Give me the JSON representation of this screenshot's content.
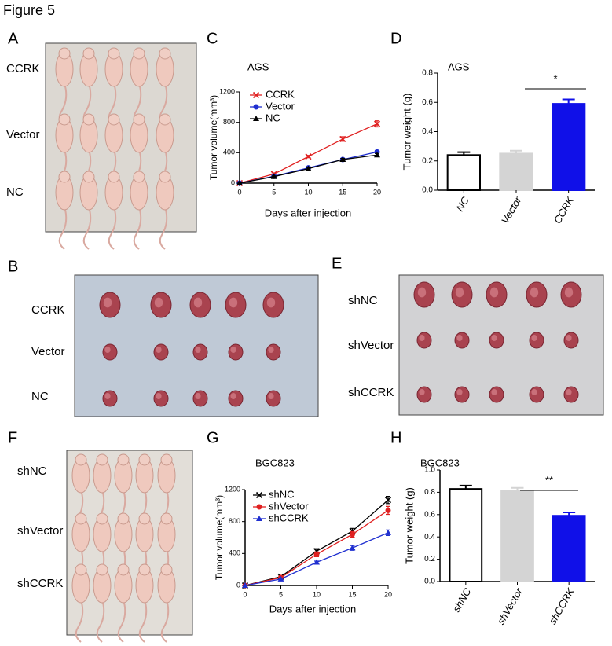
{
  "figure_title": "Figure 5",
  "panel_letters": [
    "A",
    "B",
    "C",
    "D",
    "E",
    "F",
    "G",
    "H"
  ],
  "photo_panels": [
    {
      "labels": [
        "CCRK",
        "Vector",
        "NC"
      ]
    },
    {
      "labels": [
        "CCRK",
        "Vector",
        "NC"
      ]
    },
    {
      "labels": [
        "shNC",
        "shVector",
        "shCCRK"
      ]
    },
    {
      "labels": [
        "shNC",
        "shVector",
        "shCCRK"
      ]
    }
  ],
  "chart_data": [
    {
      "type": "line",
      "title": "AGS",
      "x_label": "Days after injection",
      "y_label": "Tumor volume(mm³)",
      "x": [
        0,
        5,
        10,
        15,
        20
      ],
      "xlim": [
        0,
        20
      ],
      "xticks": [
        0,
        5,
        10,
        15,
        20
      ],
      "ylim": [
        0,
        1200
      ],
      "yticks": [
        0,
        400,
        800,
        1200
      ],
      "series": [
        {
          "name": "CCRK",
          "color": "#e02020",
          "marker": "x",
          "values": [
            0,
            120,
            350,
            580,
            780
          ],
          "errors": [
            0,
            15,
            15,
            30,
            40
          ]
        },
        {
          "name": "Vector",
          "color": "#1f2fd0",
          "marker": "circle",
          "values": [
            0,
            90,
            200,
            310,
            410
          ],
          "errors": [
            0,
            10,
            15,
            15,
            20
          ]
        },
        {
          "name": "NC",
          "color": "#000000",
          "marker": "triangle",
          "values": [
            0,
            85,
            190,
            310,
            370
          ],
          "errors": [
            0,
            10,
            15,
            15,
            20
          ]
        }
      ]
    },
    {
      "type": "bar",
      "title": "AGS",
      "y_label": "Tumor weight (g)",
      "categories": [
        "NC",
        "Vector",
        "CCRK"
      ],
      "values": [
        0.24,
        0.25,
        0.59
      ],
      "errors": [
        0.02,
        0.02,
        0.03
      ],
      "colors": [
        "#ffffff",
        "#d4d4d4",
        "#1010e8"
      ],
      "ylim": [
        0,
        0.8
      ],
      "yticks": [
        {
          "value": 0,
          "label": "0.0"
        },
        0.2,
        0.4,
        0.6,
        0.8
      ],
      "annotation": "*"
    },
    {
      "type": "line",
      "title": "BGC823",
      "x_label": "Days after injection",
      "y_label": "Tumor volume(mm³)",
      "x": [
        0,
        5,
        10,
        15,
        20
      ],
      "xlim": [
        0,
        20
      ],
      "xticks": [
        0,
        5,
        10,
        15,
        20
      ],
      "ylim": [
        0,
        1200
      ],
      "yticks": [
        0,
        400,
        800,
        1200
      ],
      "series": [
        {
          "name": "shNC",
          "color": "#000000",
          "marker": "x",
          "values": [
            0,
            110,
            430,
            680,
            1070
          ],
          "errors": [
            0,
            15,
            30,
            35,
            45
          ]
        },
        {
          "name": "shVector",
          "color": "#e02020",
          "marker": "circle",
          "values": [
            0,
            100,
            390,
            640,
            940
          ],
          "errors": [
            0,
            15,
            30,
            35,
            50
          ]
        },
        {
          "name": "shCCRK",
          "color": "#1f2fd0",
          "marker": "triangle",
          "values": [
            0,
            80,
            290,
            470,
            660
          ],
          "errors": [
            0,
            10,
            15,
            30,
            35
          ]
        }
      ]
    },
    {
      "type": "bar",
      "title": "BGC823",
      "y_label": "Tumor weight (g)",
      "categories": [
        "shNC",
        "shVector",
        "shCCRK"
      ],
      "values": [
        0.83,
        0.81,
        0.59
      ],
      "errors": [
        0.03,
        0.03,
        0.03
      ],
      "colors": [
        "#ffffff",
        "#d4d4d4",
        "#1010e8"
      ],
      "ylim": [
        0,
        1.0
      ],
      "yticks": [
        {
          "value": 0,
          "label": "0.0"
        },
        0.2,
        0.4,
        0.6,
        0.8,
        {
          "value": 1.0,
          "label": "1.0"
        }
      ],
      "annotation": "**"
    }
  ]
}
